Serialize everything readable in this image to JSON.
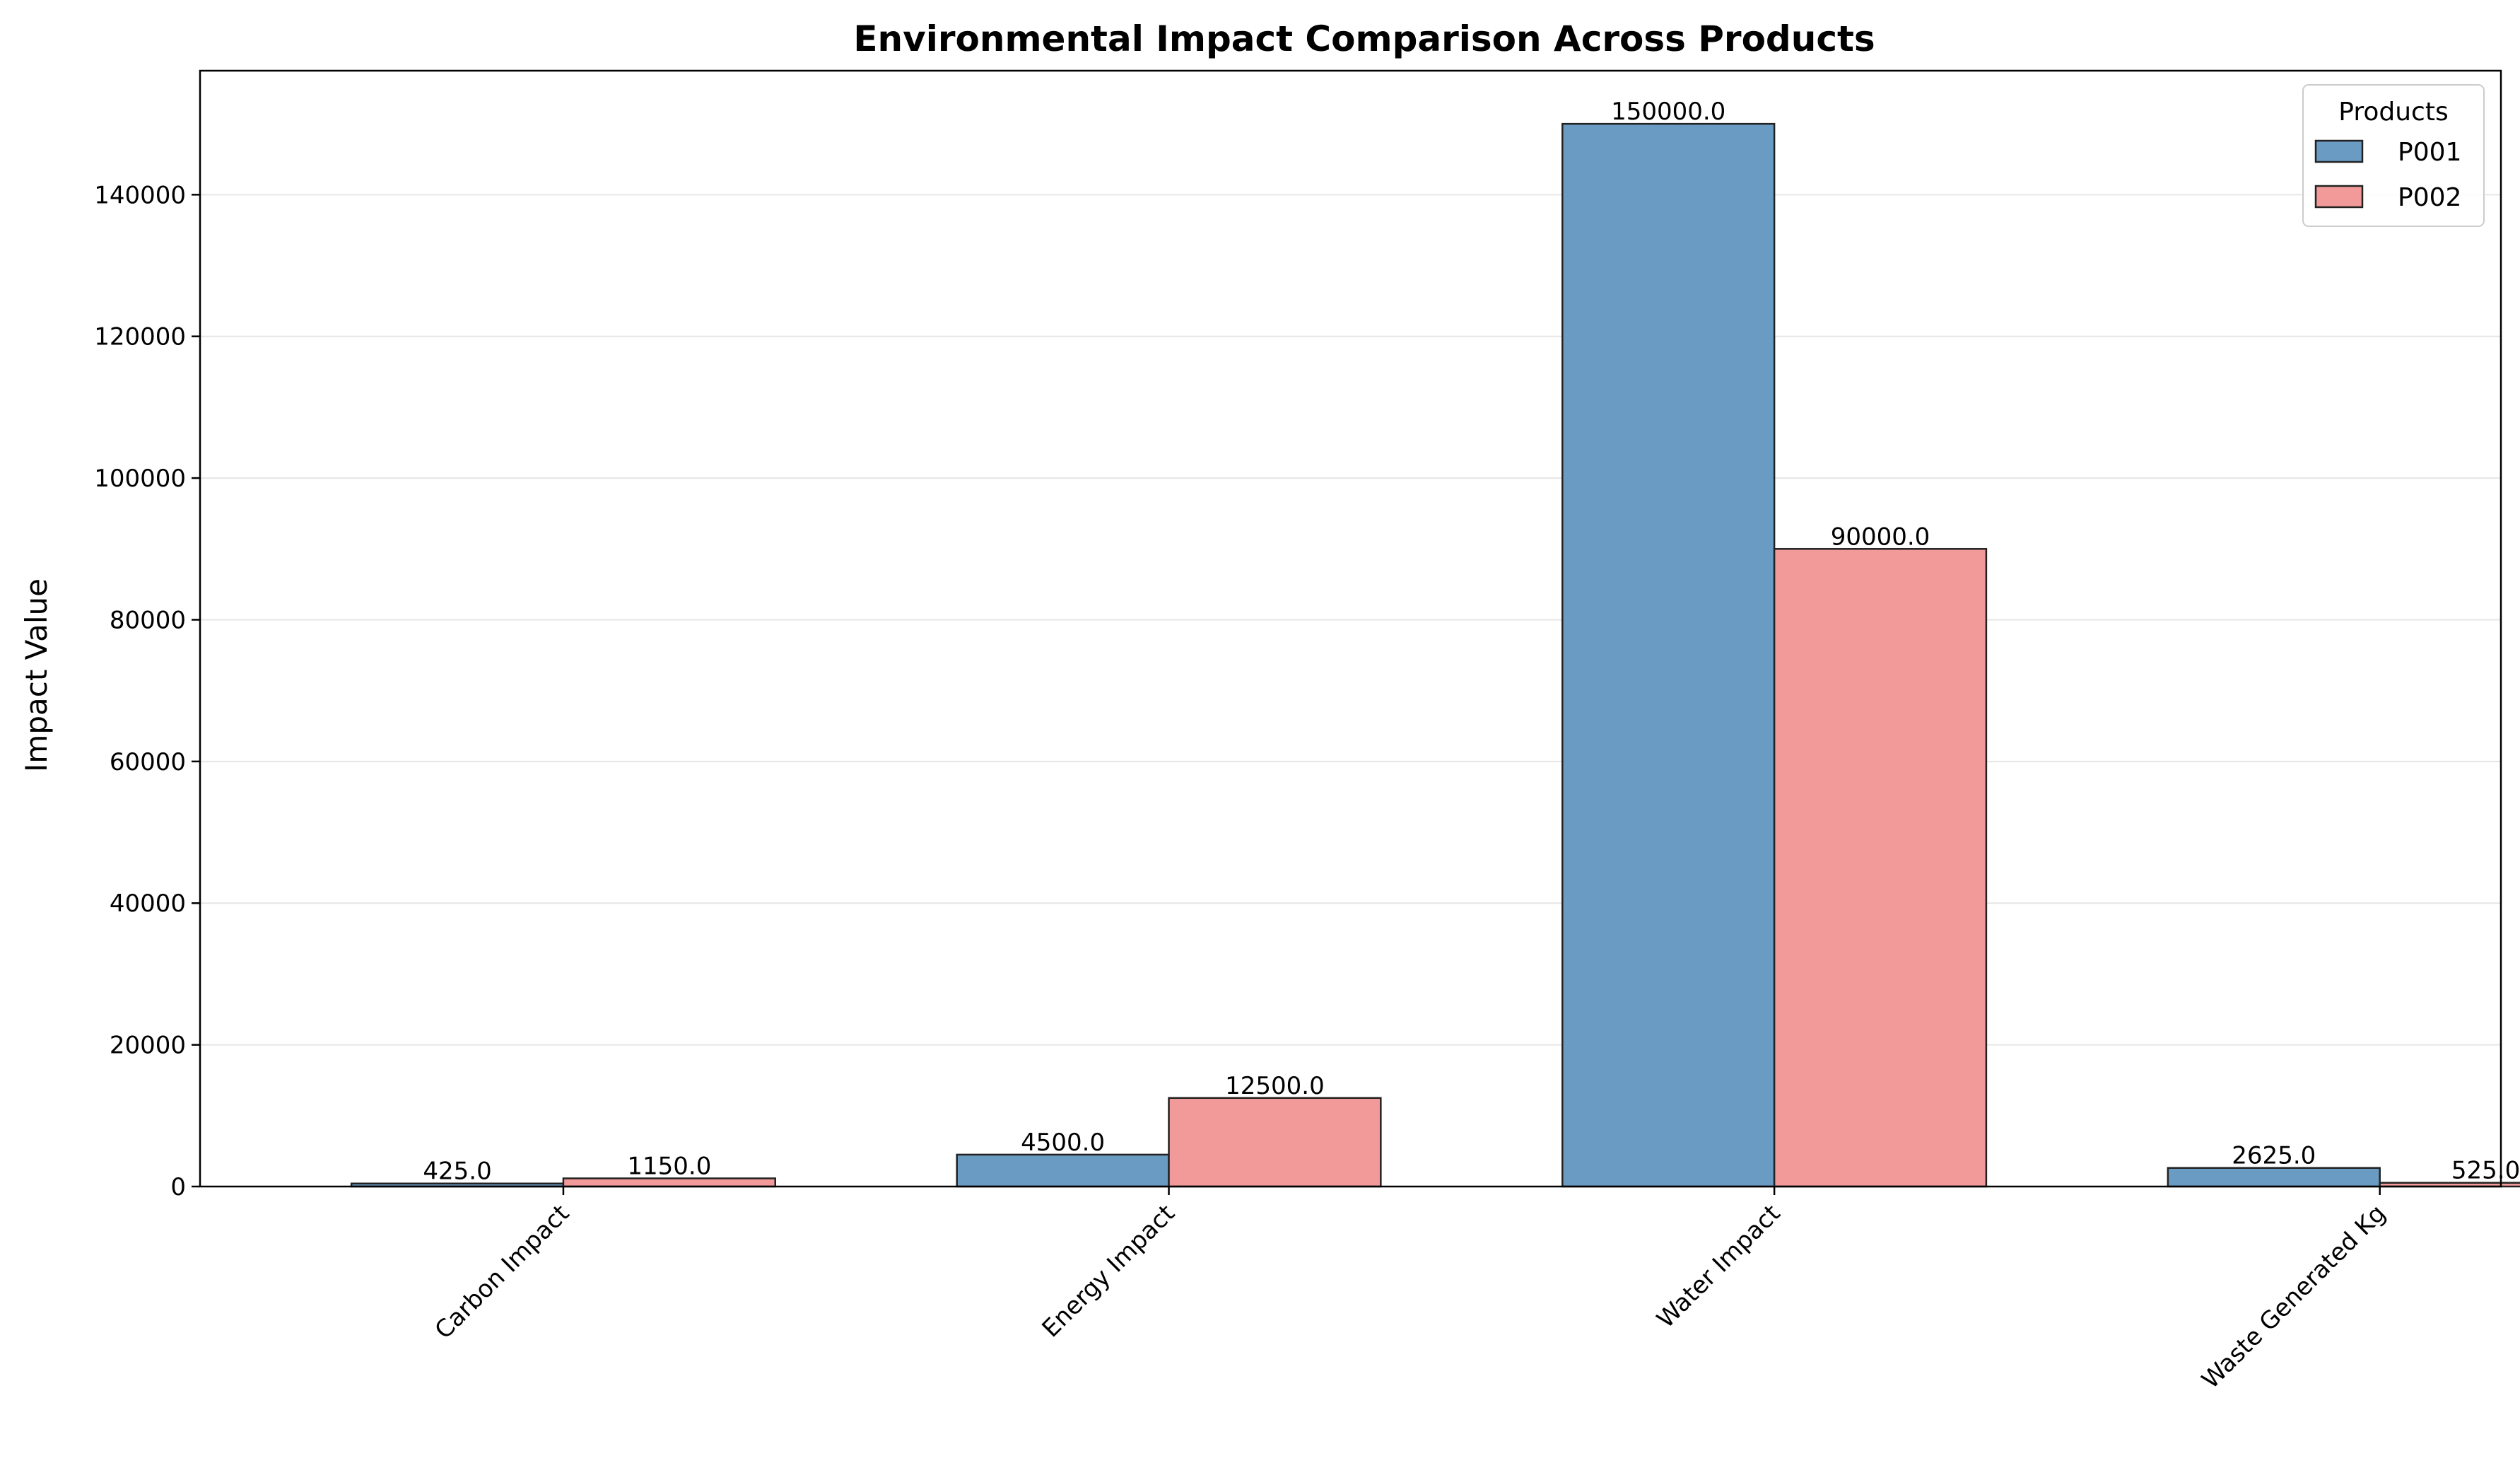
{
  "chart_data": {
    "type": "bar",
    "title": "Environmental Impact Comparison Across Products",
    "xlabel": "",
    "ylabel": "Impact Value",
    "categories": [
      "Carbon Impact",
      "Energy Impact",
      "Water Impact",
      "Waste Generated Kg"
    ],
    "series": [
      {
        "name": "P001",
        "values": [
          425.0,
          4500.0,
          150000.0,
          2625.0
        ],
        "color": "#6a9bc3"
      },
      {
        "name": "P002",
        "values": [
          1150.0,
          12500.0,
          90000.0,
          525.0
        ],
        "color": "#f29a9a"
      }
    ],
    "data_labels": [
      [
        "425.0",
        "4500.0",
        "150000.0",
        "2625.0"
      ],
      [
        "1150.0",
        "12500.0",
        "90000.0",
        "525.0"
      ]
    ],
    "ylim": [
      0,
      157500
    ],
    "yticks": [
      0,
      20000,
      40000,
      60000,
      80000,
      100000,
      120000,
      140000
    ],
    "ytick_labels": [
      "0",
      "20000",
      "40000",
      "60000",
      "80000",
      "100000",
      "120000",
      "140000"
    ],
    "grid": "y",
    "legend": {
      "title": "Products",
      "placement": "top-right"
    }
  }
}
